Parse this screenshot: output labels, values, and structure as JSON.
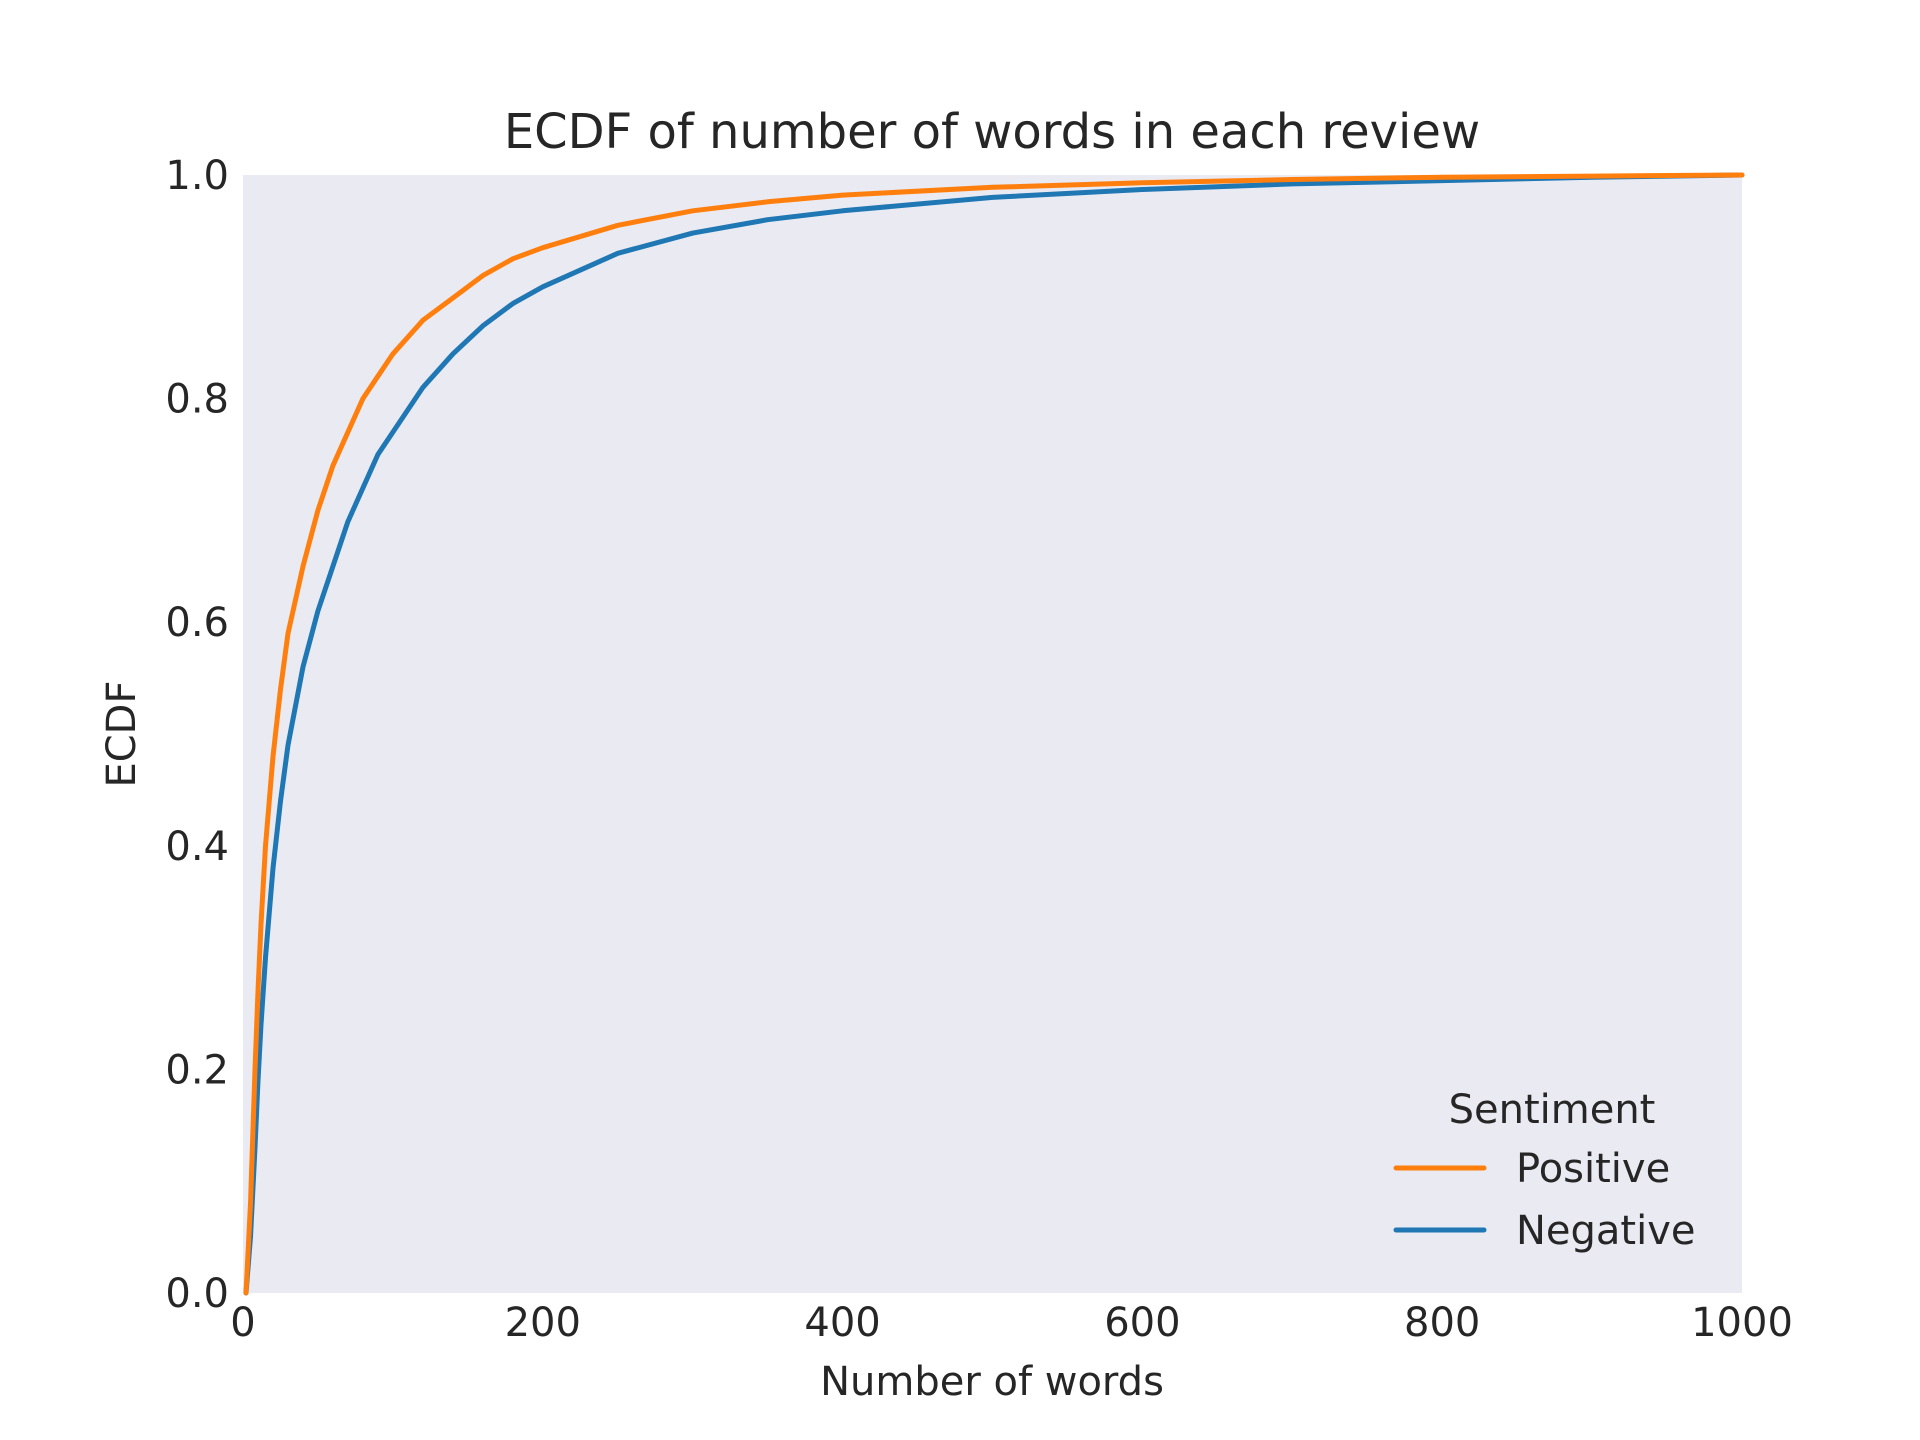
{
  "chart_data": {
    "type": "line",
    "title": "ECDF of number of words in each review",
    "xlabel": "Number of words",
    "ylabel": "ECDF",
    "xlim": [
      0,
      1000
    ],
    "ylim": [
      0,
      1.0
    ],
    "xticks": [
      0,
      200,
      400,
      600,
      800,
      1000
    ],
    "yticks": [
      0.0,
      0.2,
      0.4,
      0.6,
      0.8,
      1.0
    ],
    "xtick_labels": [
      "0",
      "200",
      "400",
      "600",
      "800",
      "1000"
    ],
    "ytick_labels": [
      "0.0",
      "0.2",
      "0.4",
      "0.6",
      "0.8",
      "1.0"
    ],
    "grid": false,
    "background": "#eaeaf2",
    "legend": {
      "title": "Sentiment",
      "position": "lower-right"
    },
    "series": [
      {
        "name": "Positive",
        "color": "#ff7f0e",
        "x": [
          2,
          5,
          8,
          10,
          12,
          15,
          20,
          25,
          30,
          40,
          50,
          60,
          70,
          80,
          90,
          100,
          120,
          140,
          160,
          180,
          200,
          250,
          300,
          350,
          400,
          500,
          600,
          700,
          800,
          900,
          1000
        ],
        "y": [
          0.0,
          0.08,
          0.2,
          0.27,
          0.33,
          0.4,
          0.48,
          0.54,
          0.59,
          0.65,
          0.7,
          0.74,
          0.77,
          0.8,
          0.82,
          0.84,
          0.87,
          0.89,
          0.91,
          0.925,
          0.935,
          0.955,
          0.968,
          0.976,
          0.982,
          0.989,
          0.993,
          0.996,
          0.998,
          0.999,
          1.0
        ]
      },
      {
        "name": "Negative",
        "color": "#1f77b4",
        "x": [
          2,
          5,
          8,
          10,
          12,
          15,
          20,
          25,
          30,
          40,
          50,
          60,
          70,
          80,
          90,
          100,
          120,
          140,
          160,
          180,
          200,
          250,
          300,
          350,
          400,
          500,
          600,
          700,
          800,
          900,
          1000
        ],
        "y": [
          0.0,
          0.05,
          0.13,
          0.19,
          0.24,
          0.3,
          0.38,
          0.44,
          0.49,
          0.56,
          0.61,
          0.65,
          0.69,
          0.72,
          0.75,
          0.77,
          0.81,
          0.84,
          0.865,
          0.885,
          0.9,
          0.93,
          0.948,
          0.96,
          0.968,
          0.98,
          0.987,
          0.992,
          0.995,
          0.998,
          1.0
        ]
      }
    ]
  }
}
